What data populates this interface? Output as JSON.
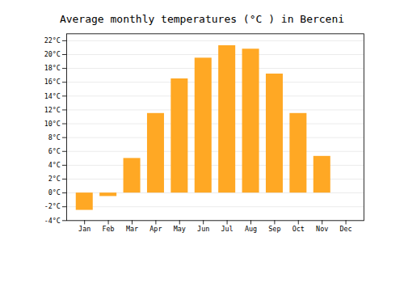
{
  "chart_data": {
    "type": "bar",
    "title": "Average monthly temperatures (°C ) in Berceni",
    "categories": [
      "Jan",
      "Feb",
      "Mar",
      "Apr",
      "May",
      "Jun",
      "Jul",
      "Aug",
      "Sep",
      "Oct",
      "Nov",
      "Dec"
    ],
    "values": [
      -2.5,
      -0.5,
      5.0,
      11.5,
      16.5,
      19.5,
      21.3,
      20.8,
      17.2,
      11.5,
      5.3,
      0.0
    ],
    "color": "#FFA824",
    "ylim": [
      -4,
      23
    ],
    "yticks": [
      {
        "value": -4,
        "label": "-4°C"
      },
      {
        "value": -2,
        "label": "-2°C"
      },
      {
        "value": 0,
        "label": "0°C"
      },
      {
        "value": 2,
        "label": "2°C"
      },
      {
        "value": 4,
        "label": "4°C"
      },
      {
        "value": 6,
        "label": "6°C"
      },
      {
        "value": 8,
        "label": "8°C"
      },
      {
        "value": 10,
        "label": "10°C"
      },
      {
        "value": 12,
        "label": "12°C"
      },
      {
        "value": 14,
        "label": "14°C"
      },
      {
        "value": 16,
        "label": "16°C"
      },
      {
        "value": 18,
        "label": "18°C"
      },
      {
        "value": 20,
        "label": "20°C"
      },
      {
        "value": 22,
        "label": "22°C"
      }
    ],
    "grid": true
  }
}
